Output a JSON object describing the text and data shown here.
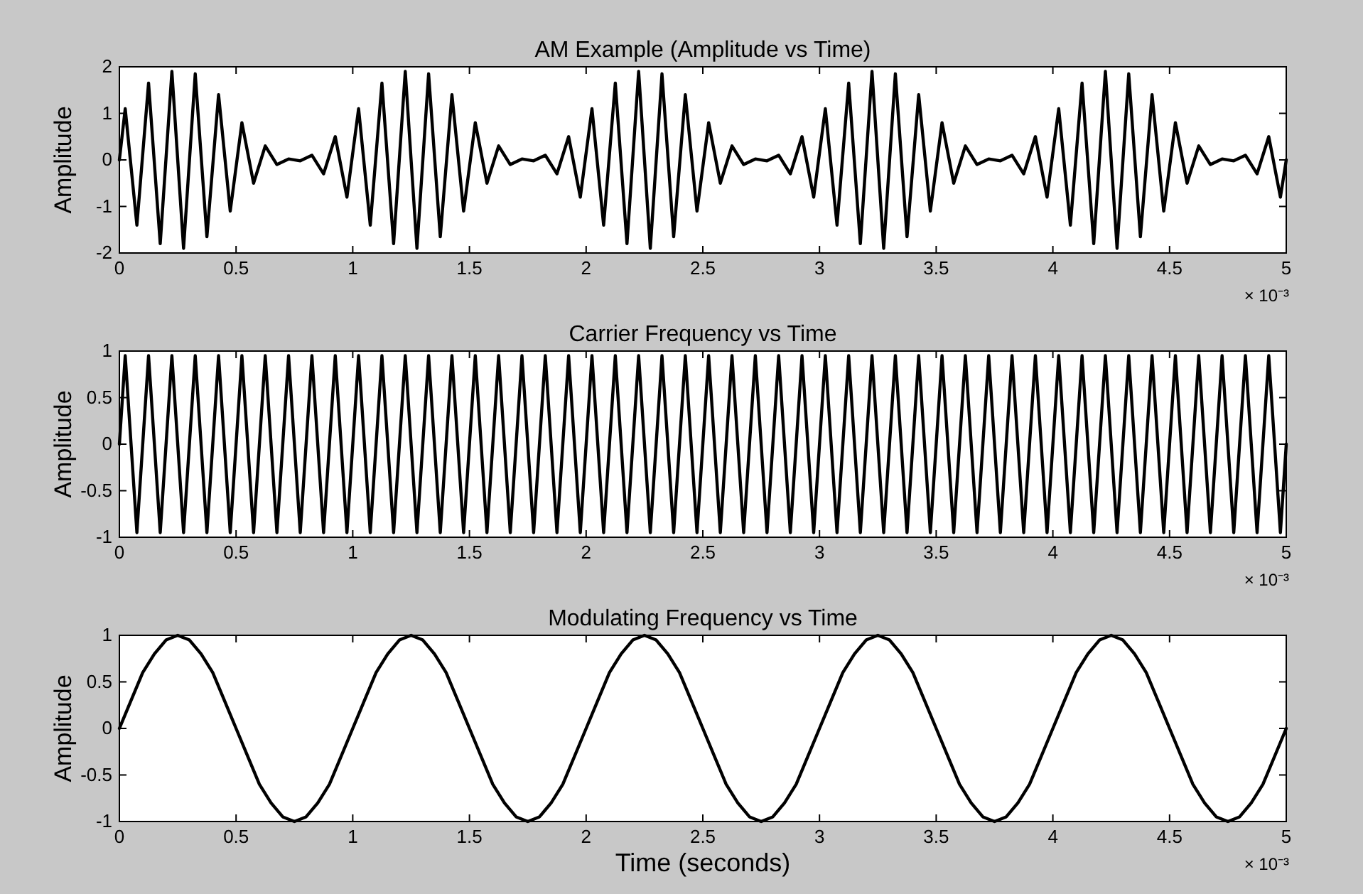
{
  "chart_data": [
    {
      "type": "line",
      "title": "AM Example (Amplitude vs Time)",
      "ylabel": "Amplitude",
      "annotations": [
        "× 10⁻³"
      ],
      "xlim": [
        0,
        5
      ],
      "xticks": [
        0,
        0.5,
        1,
        1.5,
        2,
        2.5,
        3,
        3.5,
        4,
        4.5,
        5
      ],
      "ylim": [
        -2,
        2
      ],
      "yticks": [
        -2,
        -1,
        0,
        1,
        2
      ],
      "x": [
        0,
        0.025,
        0.075,
        0.125,
        0.175,
        0.225,
        0.275,
        0.325,
        0.375,
        0.425,
        0.475,
        0.525,
        0.575,
        0.625,
        0.675,
        0.725,
        0.775,
        0.825,
        0.875,
        0.925,
        0.975,
        1.025,
        1.075,
        1.125,
        1.175,
        1.225,
        1.275,
        1.325,
        1.375,
        1.425,
        1.475,
        1.525,
        1.575,
        1.625,
        1.675,
        1.725,
        1.775,
        1.825,
        1.875,
        1.925,
        1.975,
        2.025,
        2.075,
        2.125,
        2.175,
        2.225,
        2.275,
        2.325,
        2.375,
        2.425,
        2.475,
        2.525,
        2.575,
        2.625,
        2.675,
        2.725,
        2.775,
        2.825,
        2.875,
        2.925,
        2.975,
        3.025,
        3.075,
        3.125,
        3.175,
        3.225,
        3.275,
        3.325,
        3.375,
        3.425,
        3.475,
        3.525,
        3.575,
        3.625,
        3.675,
        3.725,
        3.775,
        3.825,
        3.875,
        3.925,
        3.975,
        4.025,
        4.075,
        4.125,
        4.175,
        4.225,
        4.275,
        4.325,
        4.375,
        4.425,
        4.475,
        4.525,
        4.575,
        4.625,
        4.675,
        4.725,
        4.775,
        4.825,
        4.875,
        4.925,
        4.975,
        5
      ],
      "series": [
        {
          "color": "#000000",
          "values": [
            0,
            1.1,
            -1.4,
            1.65,
            -1.8,
            1.9,
            -1.9,
            1.85,
            -1.65,
            1.4,
            -1.1,
            0.8,
            -0.5,
            0.3,
            -0.1,
            0.02,
            -0.02,
            0.1,
            -0.3,
            0.5,
            -0.8,
            1.1,
            -1.4,
            1.65,
            -1.8,
            1.9,
            -1.9,
            1.85,
            -1.65,
            1.4,
            -1.1,
            0.8,
            -0.5,
            0.3,
            -0.1,
            0.02,
            -0.02,
            0.1,
            -0.3,
            0.5,
            -0.8,
            1.1,
            -1.4,
            1.65,
            -1.8,
            1.9,
            -1.9,
            1.85,
            -1.65,
            1.4,
            -1.1,
            0.8,
            -0.5,
            0.3,
            -0.1,
            0.02,
            -0.02,
            0.1,
            -0.3,
            0.5,
            -0.8,
            1.1,
            -1.4,
            1.65,
            -1.8,
            1.9,
            -1.9,
            1.85,
            -1.65,
            1.4,
            -1.1,
            0.8,
            -0.5,
            0.3,
            -0.1,
            0.02,
            -0.02,
            0.1,
            -0.3,
            0.5,
            -0.8,
            1.1,
            -1.4,
            1.65,
            -1.8,
            1.9,
            -1.9,
            1.85,
            -1.65,
            1.4,
            -1.1,
            0.8,
            -0.5,
            0.3,
            -0.1,
            0.02,
            -0.02,
            0.1,
            -0.3,
            0.5,
            -0.8,
            0
          ]
        }
      ]
    },
    {
      "type": "line",
      "title": "Carrier Frequency vs Time",
      "ylabel": "Amplitude",
      "annotations": [
        "× 10⁻³"
      ],
      "xlim": [
        0,
        5
      ],
      "xticks": [
        0,
        0.5,
        1,
        1.5,
        2,
        2.5,
        3,
        3.5,
        4,
        4.5,
        5
      ],
      "ylim": [
        -1,
        1
      ],
      "yticks": [
        -1,
        -0.5,
        0,
        0.5,
        1
      ],
      "x": [
        0,
        0.025,
        0.075,
        0.125,
        0.175,
        0.225,
        0.275,
        0.325,
        0.375,
        0.425,
        0.475,
        0.525,
        0.575,
        0.625,
        0.675,
        0.725,
        0.775,
        0.825,
        0.875,
        0.925,
        0.975,
        1.025,
        1.075,
        1.125,
        1.175,
        1.225,
        1.275,
        1.325,
        1.375,
        1.425,
        1.475,
        1.525,
        1.575,
        1.625,
        1.675,
        1.725,
        1.775,
        1.825,
        1.875,
        1.925,
        1.975,
        2.025,
        2.075,
        2.125,
        2.175,
        2.225,
        2.275,
        2.325,
        2.375,
        2.425,
        2.475,
        2.525,
        2.575,
        2.625,
        2.675,
        2.725,
        2.775,
        2.825,
        2.875,
        2.925,
        2.975,
        3.025,
        3.075,
        3.125,
        3.175,
        3.225,
        3.275,
        3.325,
        3.375,
        3.425,
        3.475,
        3.525,
        3.575,
        3.625,
        3.675,
        3.725,
        3.775,
        3.825,
        3.875,
        3.925,
        3.975,
        4.025,
        4.075,
        4.125,
        4.175,
        4.225,
        4.275,
        4.325,
        4.375,
        4.425,
        4.475,
        4.525,
        4.575,
        4.625,
        4.675,
        4.725,
        4.775,
        4.825,
        4.875,
        4.925,
        4.975,
        5
      ],
      "series": [
        {
          "color": "#000000",
          "values": [
            0,
            0.95,
            -0.95,
            0.95,
            -0.95,
            0.95,
            -0.95,
            0.95,
            -0.95,
            0.95,
            -0.95,
            0.95,
            -0.95,
            0.95,
            -0.95,
            0.95,
            -0.95,
            0.95,
            -0.95,
            0.95,
            -0.95,
            0.95,
            -0.95,
            0.95,
            -0.95,
            0.95,
            -0.95,
            0.95,
            -0.95,
            0.95,
            -0.95,
            0.95,
            -0.95,
            0.95,
            -0.95,
            0.95,
            -0.95,
            0.95,
            -0.95,
            0.95,
            -0.95,
            0.95,
            -0.95,
            0.95,
            -0.95,
            0.95,
            -0.95,
            0.95,
            -0.95,
            0.95,
            -0.95,
            0.95,
            -0.95,
            0.95,
            -0.95,
            0.95,
            -0.95,
            0.95,
            -0.95,
            0.95,
            -0.95,
            0.95,
            -0.95,
            0.95,
            -0.95,
            0.95,
            -0.95,
            0.95,
            -0.95,
            0.95,
            -0.95,
            0.95,
            -0.95,
            0.95,
            -0.95,
            0.95,
            -0.95,
            0.95,
            -0.95,
            0.95,
            -0.95,
            0.95,
            -0.95,
            0.95,
            -0.95,
            0.95,
            -0.95,
            0.95,
            -0.95,
            0.95,
            -0.95,
            0.95,
            -0.95,
            0.95,
            -0.95,
            0.95,
            -0.95,
            0.95,
            -0.95,
            0.95,
            -0.95,
            0
          ]
        }
      ]
    },
    {
      "type": "line",
      "title": "Modulating Frequency vs Time",
      "xlabel": "Time (seconds)",
      "ylabel": "Amplitude",
      "annotations": [
        "× 10⁻³"
      ],
      "xlim": [
        0,
        5
      ],
      "xticks": [
        0,
        0.5,
        1,
        1.5,
        2,
        2.5,
        3,
        3.5,
        4,
        4.5,
        5
      ],
      "ylim": [
        -1,
        1
      ],
      "yticks": [
        -1,
        -0.5,
        0,
        0.5,
        1
      ],
      "x": [
        0,
        0.05,
        0.1,
        0.15,
        0.2,
        0.25,
        0.3,
        0.35,
        0.4,
        0.45,
        0.5,
        0.55,
        0.6,
        0.65,
        0.7,
        0.75,
        0.8,
        0.85,
        0.9,
        0.95,
        1,
        1.05,
        1.1,
        1.15,
        1.2,
        1.25,
        1.3,
        1.35,
        1.4,
        1.45,
        1.5,
        1.55,
        1.6,
        1.65,
        1.7,
        1.75,
        1.8,
        1.85,
        1.9,
        1.95,
        2,
        2.05,
        2.1,
        2.15,
        2.2,
        2.25,
        2.3,
        2.35,
        2.4,
        2.45,
        2.5,
        2.55,
        2.6,
        2.65,
        2.7,
        2.75,
        2.8,
        2.85,
        2.9,
        2.95,
        3,
        3.05,
        3.1,
        3.15,
        3.2,
        3.25,
        3.3,
        3.35,
        3.4,
        3.45,
        3.5,
        3.55,
        3.6,
        3.65,
        3.7,
        3.75,
        3.8,
        3.85,
        3.9,
        3.95,
        4,
        4.05,
        4.1,
        4.15,
        4.2,
        4.25,
        4.3,
        4.35,
        4.4,
        4.45,
        4.5,
        4.55,
        4.6,
        4.65,
        4.7,
        4.75,
        4.8,
        4.85,
        4.9,
        4.95,
        5
      ],
      "series": [
        {
          "color": "#000000",
          "values": [
            0,
            0.3,
            0.6,
            0.8,
            0.95,
            1,
            0.95,
            0.8,
            0.6,
            0.3,
            0,
            -0.3,
            -0.6,
            -0.8,
            -0.95,
            -1,
            -0.95,
            -0.8,
            -0.6,
            -0.3,
            0,
            0.3,
            0.6,
            0.8,
            0.95,
            1,
            0.95,
            0.8,
            0.6,
            0.3,
            0,
            -0.3,
            -0.6,
            -0.8,
            -0.95,
            -1,
            -0.95,
            -0.8,
            -0.6,
            -0.3,
            0,
            0.3,
            0.6,
            0.8,
            0.95,
            1,
            0.95,
            0.8,
            0.6,
            0.3,
            0,
            -0.3,
            -0.6,
            -0.8,
            -0.95,
            -1,
            -0.95,
            -0.8,
            -0.6,
            -0.3,
            0,
            0.3,
            0.6,
            0.8,
            0.95,
            1,
            0.95,
            0.8,
            0.6,
            0.3,
            0,
            -0.3,
            -0.6,
            -0.8,
            -0.95,
            -1,
            -0.95,
            -0.8,
            -0.6,
            -0.3,
            0,
            0.3,
            0.6,
            0.8,
            0.95,
            1,
            0.95,
            0.8,
            0.6,
            0.3,
            0,
            -0.3,
            -0.6,
            -0.8,
            -0.95,
            -1,
            -0.95,
            -0.8,
            -0.6,
            -0.3,
            0
          ]
        }
      ]
    }
  ]
}
